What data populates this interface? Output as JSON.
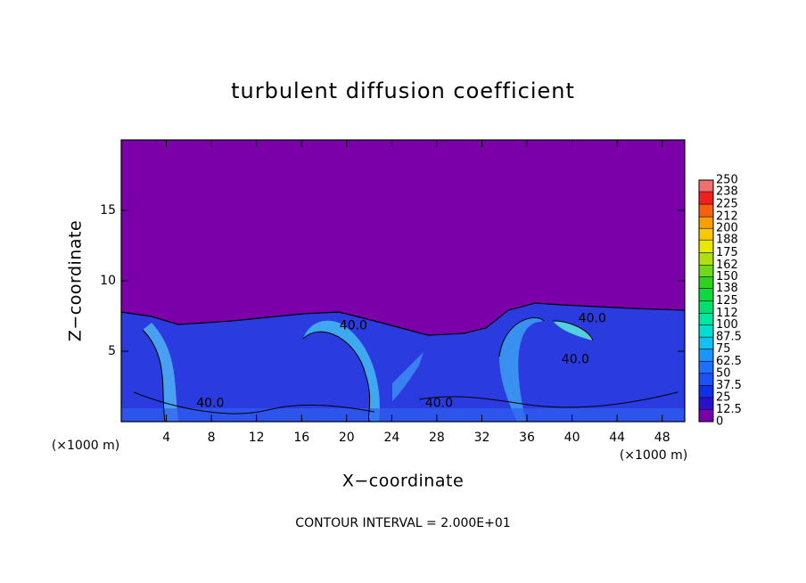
{
  "chart_data": {
    "type": "contour",
    "title": "turbulent diffusion coefficient",
    "xlabel": "X−coordinate",
    "ylabel": "Z−coordinate",
    "x_unit_left": "(×1000 m)",
    "x_unit_right": "(×1000 m)",
    "footer": "CONTOUR INTERVAL = 2.000E+01",
    "xlim": [
      0,
      50
    ],
    "xticks": [
      4,
      8,
      12,
      16,
      20,
      24,
      28,
      32,
      36,
      40,
      44,
      48
    ],
    "ylim": [
      0,
      20
    ],
    "yticks": [
      5,
      10,
      15
    ],
    "contour_labels": [
      {
        "value": 40,
        "label": "40.0",
        "x": 7.9,
        "y": 1.3
      },
      {
        "value": 40,
        "label": "40.0",
        "x": 20.6,
        "y": 6.8
      },
      {
        "value": 40,
        "label": "40.0",
        "x": 28.2,
        "y": 1.3
      },
      {
        "value": 40,
        "label": "40.0",
        "x": 41.8,
        "y": 7.3
      },
      {
        "value": 40,
        "label": "40.0",
        "x": 40.3,
        "y": 4.4
      }
    ],
    "colorbar": {
      "levels": [
        0,
        12.5,
        25,
        37.5,
        50,
        62.5,
        75,
        87.5,
        100,
        112,
        125,
        138,
        150,
        162,
        175,
        188,
        200,
        212,
        225,
        238,
        250
      ],
      "colors": [
        "#7a00aa",
        "#2a10c8",
        "#1030e8",
        "#1e50f8",
        "#2070ff",
        "#1c96ff",
        "#14c0f0",
        "#00e0d0",
        "#00e8a0",
        "#00e070",
        "#10d840",
        "#30d020",
        "#70d818",
        "#b0e010",
        "#e8e800",
        "#f8c800",
        "#f8a000",
        "#f86010",
        "#f02020",
        "#f07070"
      ]
    }
  }
}
